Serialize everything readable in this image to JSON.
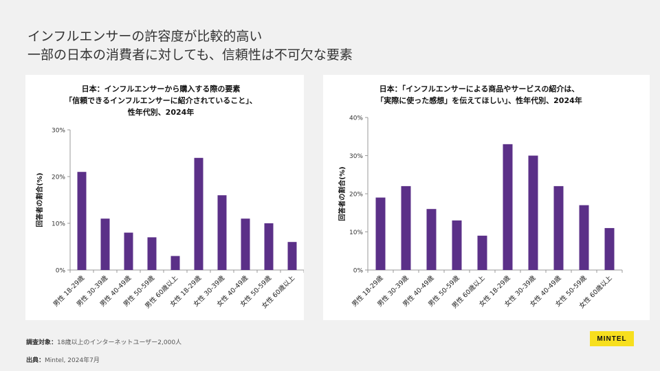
{
  "headline": {
    "line1": "インフルエンサーの許容度が比較的高い",
    "line2": "一部の日本の消費者に対しても、信頼性は不可欠な要素"
  },
  "footer": {
    "target_label": "調査対象：",
    "target_text": "18歳以上のインターネットユーザー2,000人",
    "source_label": "出典：",
    "source_text": "Mintel, 2024年7月"
  },
  "logo": "MINTEL",
  "colors": {
    "bar": "#5b3088",
    "axis": "#999999",
    "panel": "#ffffff",
    "background": "#f1f1f1"
  },
  "chart_data": [
    {
      "type": "bar",
      "title": [
        "日本：インフルエンサーから購入する際の要素",
        "「信頼できるインフルエンサーに紹介されていること」、",
        "性年代別、2024年"
      ],
      "ylabel": "回答者の割合(%)",
      "ylim": [
        0,
        30
      ],
      "yticks": [
        "0%",
        "10%",
        "20%",
        "30%"
      ],
      "categories": [
        "男性 18-29歳",
        "男性 30-39歳",
        "男性 40-49歳",
        "男性 50-59歳",
        "男性 60歳以上",
        "女性 18-29歳",
        "女性 30-39歳",
        "女性 40-49歳",
        "女性 50-59歳",
        "女性 60歳以上"
      ],
      "values": [
        21,
        11,
        8,
        7,
        3,
        24,
        16,
        11,
        10,
        6
      ]
    },
    {
      "type": "bar",
      "title": [
        "日本：「インフルエンサーによる商品やサービスの紹介は、",
        "「実際に使った感想」を伝えてほしい」、性年代別、2024年"
      ],
      "ylabel": "回答者の割合(%)",
      "ylim": [
        0,
        40
      ],
      "yticks": [
        "0%",
        "10%",
        "20%",
        "30%",
        "40%"
      ],
      "categories": [
        "男性 18-29歳",
        "男性 30-39歳",
        "男性 40-49歳",
        "男性 50-59歳",
        "男性 60歳以上",
        "女性 18-29歳",
        "女性 30-39歳",
        "女性 40-49歳",
        "女性 50-59歳",
        "女性 60歳以上"
      ],
      "values": [
        19,
        22,
        16,
        13,
        9,
        33,
        30,
        22,
        17,
        11
      ]
    }
  ]
}
